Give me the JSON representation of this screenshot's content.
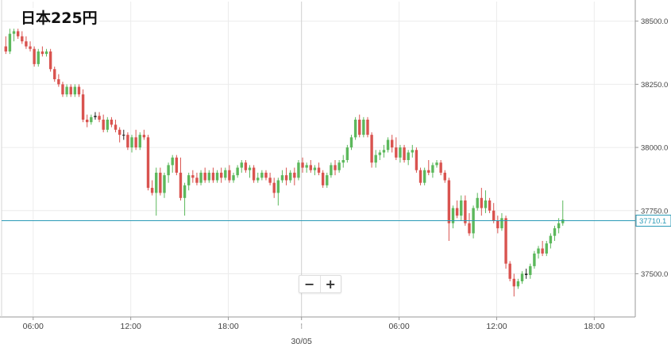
{
  "title": "日本225円",
  "zoom": {
    "minus": "−",
    "plus": "+"
  },
  "colors": {
    "up": "#5cb85c",
    "down": "#d9534f",
    "doji": "#222222",
    "price_line": "#2a9ab7",
    "grid": "#ececec"
  },
  "chart_data": {
    "type": "candlestick",
    "title": "日本225円",
    "ylim": [
      37370,
      38540
    ],
    "y_ticks": [
      "38500.0",
      "38250.0",
      "38000.0",
      "37750.0",
      "37500.0"
    ],
    "x_ticks": [
      {
        "label": "06:00",
        "bar": 4
      },
      {
        "label": "12:00",
        "bar": 28
      },
      {
        "label": "18:00",
        "bar": 52
      },
      {
        "label": "",
        "bar": 70,
        "sub": "30/05"
      },
      {
        "label": "06:00",
        "bar": 94
      },
      {
        "label": "12:00",
        "bar": 118
      },
      {
        "label": "18:00",
        "bar": 142
      }
    ],
    "date_label": "30/05",
    "current_price": "37710.1",
    "current_price_value": 37710.1,
    "candles": [
      [
        38400,
        38440,
        38370,
        38380
      ],
      [
        38380,
        38470,
        38370,
        38450
      ],
      [
        38450,
        38470,
        38420,
        38460
      ],
      [
        38460,
        38470,
        38430,
        38440
      ],
      [
        38440,
        38460,
        38410,
        38420
      ],
      [
        38420,
        38440,
        38390,
        38400
      ],
      [
        38400,
        38420,
        38380,
        38390
      ],
      [
        38390,
        38400,
        38320,
        38330
      ],
      [
        38330,
        38390,
        38320,
        38380
      ],
      [
        38380,
        38400,
        38360,
        38370
      ],
      [
        38370,
        38390,
        38360,
        38380
      ],
      [
        38380,
        38390,
        38300,
        38310
      ],
      [
        38310,
        38320,
        38260,
        38270
      ],
      [
        38270,
        38290,
        38240,
        38250
      ],
      [
        38250,
        38260,
        38200,
        38210
      ],
      [
        38210,
        38250,
        38200,
        38240
      ],
      [
        38240,
        38250,
        38200,
        38210
      ],
      [
        38210,
        38250,
        38200,
        38240
      ],
      [
        38240,
        38250,
        38200,
        38210
      ],
      [
        38210,
        38230,
        38100,
        38110
      ],
      [
        38110,
        38130,
        38080,
        38100
      ],
      [
        38100,
        38130,
        38090,
        38120
      ],
      [
        38120,
        38140,
        38110,
        38125
      ],
      [
        38125,
        38140,
        38100,
        38110
      ],
      [
        38110,
        38130,
        38060,
        38070
      ],
      [
        38070,
        38120,
        38060,
        38110
      ],
      [
        38110,
        38120,
        38080,
        38090
      ],
      [
        38090,
        38110,
        38060,
        38070
      ],
      [
        38070,
        38080,
        38020,
        38050
      ],
      [
        38050,
        38070,
        38030,
        38050
      ],
      [
        38050,
        38060,
        37990,
        38000
      ],
      [
        38000,
        38050,
        37980,
        38040
      ],
      [
        38040,
        38070,
        37990,
        38000
      ],
      [
        38000,
        38060,
        37990,
        38050
      ],
      [
        38050,
        38070,
        38030,
        38040
      ],
      [
        38040,
        38050,
        37830,
        37840
      ],
      [
        37840,
        37870,
        37810,
        37820
      ],
      [
        37820,
        37920,
        37730,
        37900
      ],
      [
        37900,
        37920,
        37810,
        37820
      ],
      [
        37820,
        37900,
        37800,
        37890
      ],
      [
        37890,
        37940,
        37860,
        37930
      ],
      [
        37930,
        37970,
        37900,
        37960
      ],
      [
        37960,
        37970,
        37890,
        37900
      ],
      [
        37900,
        37960,
        37790,
        37800
      ],
      [
        37800,
        37860,
        37730,
        37850
      ],
      [
        37850,
        37900,
        37830,
        37890
      ],
      [
        37890,
        37910,
        37860,
        37880
      ],
      [
        37880,
        37900,
        37850,
        37860
      ],
      [
        37860,
        37910,
        37850,
        37900
      ],
      [
        37900,
        37920,
        37860,
        37870
      ],
      [
        37870,
        37910,
        37860,
        37900
      ],
      [
        37900,
        37920,
        37860,
        37870
      ],
      [
        37870,
        37910,
        37860,
        37900
      ],
      [
        37900,
        37920,
        37860,
        37880
      ],
      [
        37880,
        37920,
        37870,
        37910
      ],
      [
        37910,
        37930,
        37860,
        37870
      ],
      [
        37870,
        37900,
        37860,
        37890
      ],
      [
        37890,
        37930,
        37880,
        37920
      ],
      [
        37920,
        37950,
        37900,
        37940
      ],
      [
        37940,
        37950,
        37900,
        37910
      ],
      [
        37910,
        37930,
        37880,
        37920
      ],
      [
        37920,
        37930,
        37860,
        37870
      ],
      [
        37870,
        37900,
        37860,
        37880
      ],
      [
        37880,
        37910,
        37870,
        37900
      ],
      [
        37900,
        37910,
        37870,
        37880
      ],
      [
        37880,
        37900,
        37850,
        37860
      ],
      [
        37860,
        37880,
        37800,
        37820
      ],
      [
        37820,
        37880,
        37770,
        37870
      ],
      [
        37870,
        37910,
        37860,
        37890
      ],
      [
        37890,
        37920,
        37850,
        37870
      ],
      [
        37870,
        37910,
        37860,
        37900
      ],
      [
        37900,
        37920,
        37850,
        37880
      ],
      [
        37880,
        37950,
        37870,
        37940
      ],
      [
        37940,
        37960,
        37900,
        37920
      ],
      [
        37920,
        37940,
        37900,
        37930
      ],
      [
        37930,
        37950,
        37900,
        37910
      ],
      [
        37910,
        37930,
        37890,
        37920
      ],
      [
        37920,
        37940,
        37890,
        37900
      ],
      [
        37900,
        37910,
        37840,
        37850
      ],
      [
        37850,
        37900,
        37840,
        37890
      ],
      [
        37890,
        37940,
        37880,
        37930
      ],
      [
        37930,
        37950,
        37890,
        37910
      ],
      [
        37910,
        37950,
        37900,
        37940
      ],
      [
        37940,
        37970,
        37920,
        37950
      ],
      [
        37950,
        38010,
        37940,
        38000
      ],
      [
        38000,
        38050,
        37990,
        38040
      ],
      [
        38040,
        38120,
        38030,
        38110
      ],
      [
        38110,
        38130,
        38040,
        38050
      ],
      [
        38050,
        38120,
        38040,
        38110
      ],
      [
        38110,
        38120,
        38040,
        38050
      ],
      [
        38050,
        38060,
        37920,
        37940
      ],
      [
        37940,
        37990,
        37920,
        37970
      ],
      [
        37970,
        37990,
        37950,
        37980
      ],
      [
        37980,
        38010,
        37960,
        37990
      ],
      [
        37990,
        38040,
        37980,
        38030
      ],
      [
        38030,
        38050,
        37980,
        38000
      ],
      [
        38000,
        38040,
        37950,
        37960
      ],
      [
        37960,
        38010,
        37940,
        38000
      ],
      [
        38000,
        38010,
        37940,
        37950
      ],
      [
        37950,
        37990,
        37930,
        37980
      ],
      [
        37980,
        38010,
        37960,
        37990
      ],
      [
        37990,
        38000,
        37900,
        37910
      ],
      [
        37910,
        37920,
        37850,
        37860
      ],
      [
        37860,
        37920,
        37850,
        37910
      ],
      [
        37910,
        37950,
        37890,
        37900
      ],
      [
        37900,
        37940,
        37880,
        37930
      ],
      [
        37930,
        37950,
        37920,
        37940
      ],
      [
        37940,
        37950,
        37890,
        37900
      ],
      [
        37900,
        37910,
        37860,
        37870
      ],
      [
        37870,
        37880,
        37630,
        37700
      ],
      [
        37700,
        37770,
        37680,
        37760
      ],
      [
        37760,
        37790,
        37720,
        37730
      ],
      [
        37730,
        37810,
        37710,
        37790
      ],
      [
        37790,
        37810,
        37690,
        37700
      ],
      [
        37700,
        37740,
        37650,
        37660
      ],
      [
        37660,
        37770,
        37640,
        37760
      ],
      [
        37760,
        37820,
        37750,
        37800
      ],
      [
        37800,
        37840,
        37730,
        37760
      ],
      [
        37760,
        37830,
        37740,
        37790
      ],
      [
        37790,
        37800,
        37740,
        37750
      ],
      [
        37750,
        37780,
        37700,
        37710
      ],
      [
        37710,
        37730,
        37660,
        37680
      ],
      [
        37680,
        37740,
        37670,
        37720
      ],
      [
        37720,
        37730,
        37520,
        37540
      ],
      [
        37540,
        37550,
        37470,
        37480
      ],
      [
        37480,
        37500,
        37410,
        37450
      ],
      [
        37450,
        37480,
        37440,
        37470
      ],
      [
        37470,
        37510,
        37460,
        37500
      ],
      [
        37500,
        37520,
        37480,
        37495
      ],
      [
        37495,
        37540,
        37480,
        37530
      ],
      [
        37530,
        37590,
        37520,
        37580
      ],
      [
        37580,
        37610,
        37560,
        37600
      ],
      [
        37600,
        37630,
        37570,
        37580
      ],
      [
        37580,
        37630,
        37570,
        37620
      ],
      [
        37620,
        37660,
        37600,
        37650
      ],
      [
        37650,
        37690,
        37630,
        37680
      ],
      [
        37680,
        37720,
        37660,
        37700
      ],
      [
        37700,
        37790,
        37690,
        37715
      ]
    ]
  }
}
